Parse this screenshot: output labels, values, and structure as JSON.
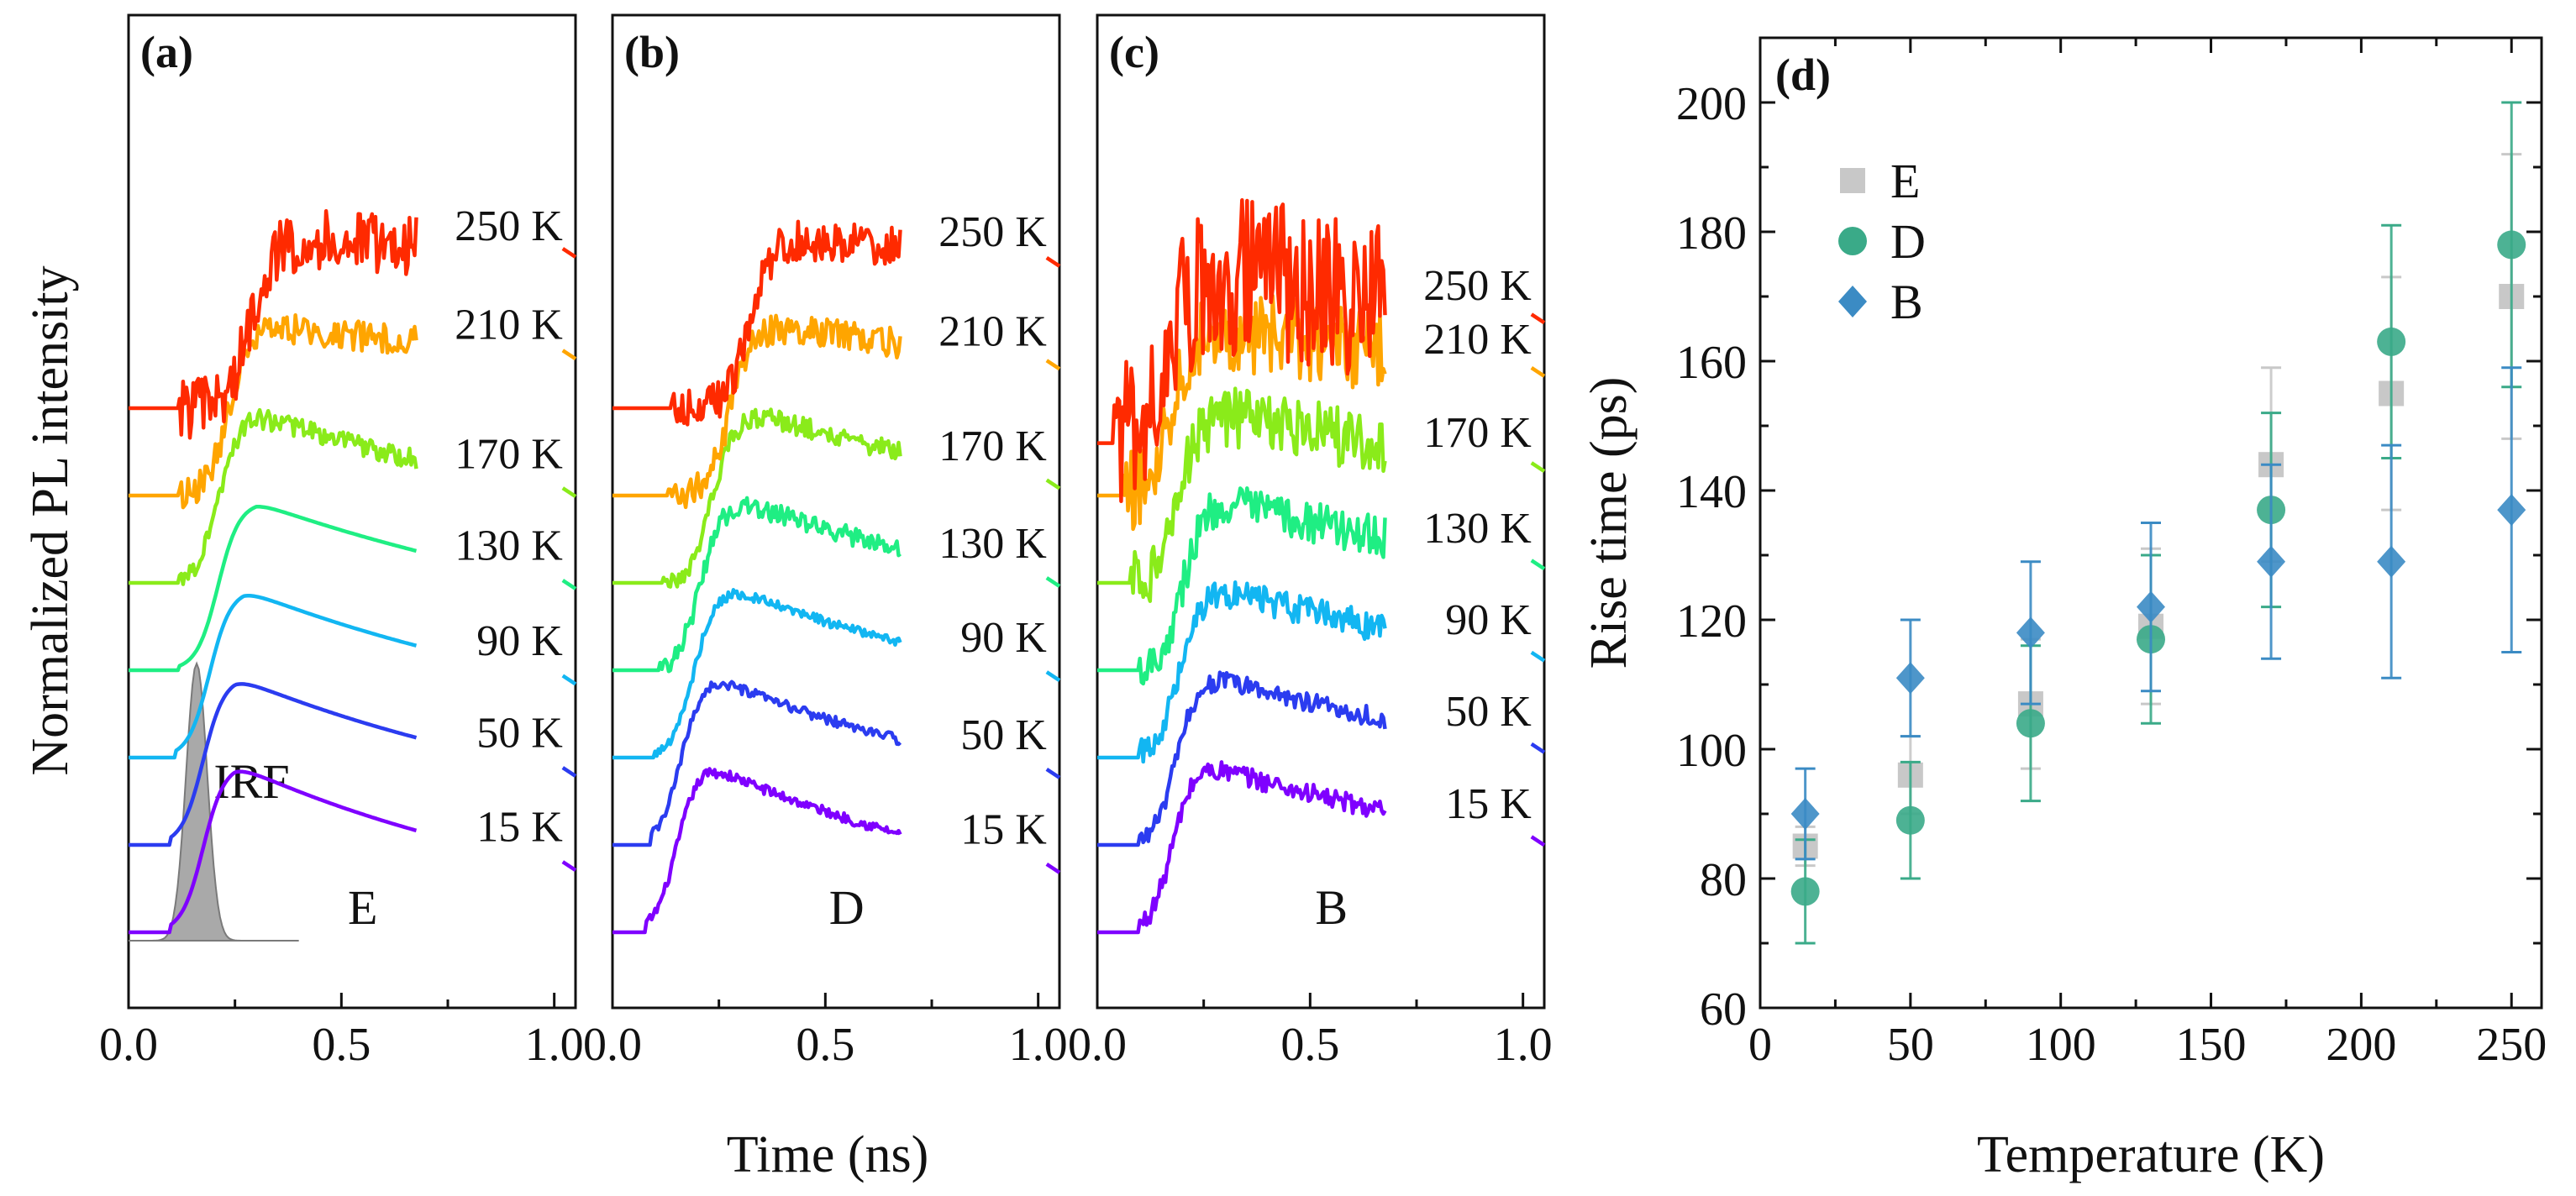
{
  "figure": {
    "ylabel_left": "Normalized PL intensity",
    "xlabel_left": "Time (ns)"
  },
  "chart_data": [
    {
      "type": "line",
      "panel": "(a)",
      "letter": "a",
      "sample": "E",
      "xlabel": "Time (ns)",
      "xlim": [
        0,
        1.05
      ],
      "xticks": [
        "0.0",
        "0.5",
        "1.0"
      ],
      "ylabel": "Normalized PL intensity",
      "irf_label": "IRF",
      "series": [
        {
          "name": "15 K",
          "label": "15 K",
          "color": "#7f00ff",
          "offset": 0.0,
          "onset": 0.1,
          "peak_time": 0.25,
          "amp": 1.0,
          "decay": 0.85,
          "noise": 0.0
        },
        {
          "name": "50 K",
          "label": "50 K",
          "color": "#2b3cf0",
          "offset": 1.0,
          "onset": 0.1,
          "peak_time": 0.25,
          "amp": 1.0,
          "decay": 0.95,
          "noise": 0.0
        },
        {
          "name": "90 K",
          "label": "90 K",
          "color": "#12b6f2",
          "offset": 2.0,
          "onset": 0.11,
          "peak_time": 0.27,
          "amp": 1.0,
          "decay": 1.0,
          "noise": 0.0
        },
        {
          "name": "130 K",
          "label": "130 K",
          "color": "#1fee83",
          "offset": 3.0,
          "onset": 0.12,
          "peak_time": 0.3,
          "amp": 1.0,
          "decay": 1.1,
          "noise": 0.0
        },
        {
          "name": "170 K",
          "label": "170 K",
          "color": "#8aeb1a",
          "offset": 4.0,
          "onset": 0.12,
          "peak_time": 0.3,
          "amp": 1.0,
          "decay": 1.2,
          "noise": 0.01
        },
        {
          "name": "210 K",
          "label": "210 K",
          "color": "#ffa500",
          "offset": 5.0,
          "onset": 0.12,
          "peak_time": 0.35,
          "amp": 1.0,
          "decay": 4.0,
          "noise": 0.015
        },
        {
          "name": "250 K",
          "label": "250 K",
          "color": "#ff2a00",
          "offset": 6.0,
          "onset": 0.12,
          "peak_time": 0.45,
          "amp": 1.0,
          "decay": 8.0,
          "noise": 0.03
        }
      ]
    },
    {
      "type": "line",
      "panel": "(b)",
      "letter": "b",
      "sample": "D",
      "xlabel": "Time (ns)",
      "xlim": [
        0,
        1.05
      ],
      "xticks": [
        "0.0",
        "0.5",
        "1.0"
      ],
      "series": [
        {
          "name": "15 K",
          "label": "15 K",
          "color": "#7f00ff",
          "offset": 0.0,
          "onset": 0.08,
          "peak_time": 0.22,
          "amp": 1.0,
          "decay": 0.85,
          "noise": 0.005
        },
        {
          "name": "50 K",
          "label": "50 K",
          "color": "#2b3cf0",
          "offset": 1.0,
          "onset": 0.09,
          "peak_time": 0.23,
          "amp": 1.0,
          "decay": 0.95,
          "noise": 0.005
        },
        {
          "name": "90 K",
          "label": "90 K",
          "color": "#12b6f2",
          "offset": 2.0,
          "onset": 0.1,
          "peak_time": 0.28,
          "amp": 1.0,
          "decay": 1.05,
          "noise": 0.005
        },
        {
          "name": "130 K",
          "label": "130 K",
          "color": "#1fee83",
          "offset": 3.0,
          "onset": 0.11,
          "peak_time": 0.3,
          "amp": 1.0,
          "decay": 1.15,
          "noise": 0.01
        },
        {
          "name": "170 K",
          "label": "170 K",
          "color": "#8aeb1a",
          "offset": 4.0,
          "onset": 0.12,
          "peak_time": 0.35,
          "amp": 1.0,
          "decay": 1.3,
          "noise": 0.01
        },
        {
          "name": "210 K",
          "label": "210 K",
          "color": "#ffa500",
          "offset": 5.0,
          "onset": 0.13,
          "peak_time": 0.42,
          "amp": 1.0,
          "decay": 2.5,
          "noise": 0.015
        },
        {
          "name": "250 K",
          "label": "250 K",
          "color": "#ff2a00",
          "offset": 6.0,
          "onset": 0.14,
          "peak_time": 0.5,
          "amp": 1.0,
          "decay": 4.0,
          "noise": 0.02
        }
      ]
    },
    {
      "type": "line",
      "panel": "(c)",
      "letter": "c",
      "sample": "B",
      "xlabel": "Time (ns)",
      "xlim": [
        0,
        1.05
      ],
      "xticks": [
        "0.0",
        "0.5",
        "1.0"
      ],
      "series": [
        {
          "name": "15 K",
          "label": "15 K",
          "color": "#7f00ff",
          "offset": 0.0,
          "onset": 0.1,
          "peak_time": 0.25,
          "amp": 1.0,
          "decay": 1.3,
          "noise": 0.01
        },
        {
          "name": "50 K",
          "label": "50 K",
          "color": "#2b3cf0",
          "offset": 1.0,
          "onset": 0.1,
          "peak_time": 0.27,
          "amp": 1.0,
          "decay": 1.4,
          "noise": 0.01
        },
        {
          "name": "90 K",
          "label": "90 K",
          "color": "#12b6f2",
          "offset": 2.0,
          "onset": 0.1,
          "peak_time": 0.28,
          "amp": 1.0,
          "decay": 1.5,
          "noise": 0.015
        },
        {
          "name": "130 K",
          "label": "130 K",
          "color": "#1fee83",
          "offset": 3.0,
          "onset": 0.1,
          "peak_time": 0.3,
          "amp": 1.0,
          "decay": 1.6,
          "noise": 0.02
        },
        {
          "name": "170 K",
          "label": "170 K",
          "color": "#8aeb1a",
          "offset": 4.0,
          "onset": 0.08,
          "peak_time": 0.3,
          "amp": 1.0,
          "decay": 2.0,
          "noise": 0.03
        },
        {
          "name": "210 K",
          "label": "210 K",
          "color": "#ffa500",
          "offset": 5.0,
          "onset": 0.06,
          "peak_time": 0.28,
          "amp": 1.0,
          "decay": 2.5,
          "noise": 0.04
        },
        {
          "name": "250 K",
          "label": "250 K",
          "color": "#ff2a00",
          "offset": 5.6,
          "onset": 0.04,
          "peak_time": 0.3,
          "amp": 1.0,
          "decay": 2.5,
          "noise": 0.08
        }
      ]
    },
    {
      "type": "scatter",
      "panel": "(d)",
      "letter": "d",
      "xlabel": "Temperature (K)",
      "ylabel": "Rise time (ps)",
      "xlim": [
        0,
        260
      ],
      "ylim": [
        60,
        210
      ],
      "xticks": [
        0,
        50,
        100,
        150,
        200,
        250
      ],
      "yticks": [
        60,
        80,
        100,
        120,
        140,
        160,
        180,
        200
      ],
      "series": [
        {
          "name": "E",
          "marker": "square",
          "color": "#c8c8c8",
          "x": [
            15,
            50,
            90,
            130,
            170,
            210,
            250
          ],
          "y": [
            85,
            96,
            107,
            119,
            144,
            155,
            170
          ],
          "err": [
            3,
            6,
            10,
            12,
            15,
            18,
            22
          ]
        },
        {
          "name": "D",
          "marker": "circle",
          "color": "#3aaa88",
          "x": [
            15,
            50,
            90,
            130,
            170,
            210,
            250
          ],
          "y": [
            78,
            89,
            104,
            117,
            137,
            163,
            178
          ],
          "err": [
            8,
            9,
            12,
            13,
            15,
            18,
            22
          ]
        },
        {
          "name": "B",
          "marker": "diamond",
          "color": "#3b8bc4",
          "x": [
            15,
            50,
            90,
            130,
            170,
            210,
            250
          ],
          "y": [
            90,
            111,
            118,
            122,
            129,
            129,
            137
          ],
          "err": [
            7,
            9,
            11,
            13,
            15,
            18,
            22
          ]
        }
      ]
    }
  ]
}
